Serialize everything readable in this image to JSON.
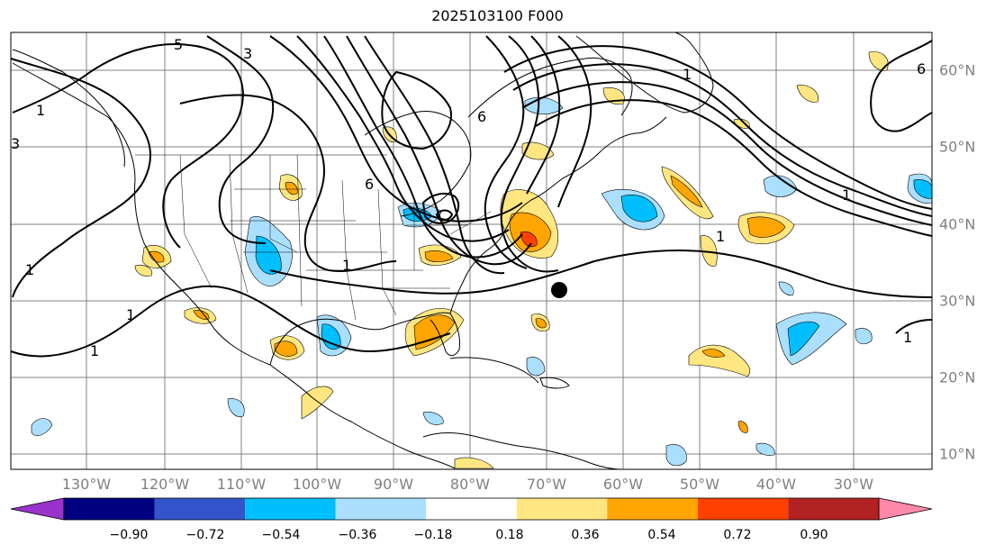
{
  "title": "2025103100 F000",
  "longitude_labels": [
    "130°W",
    "120°W",
    "110°W",
    "100°W",
    "90°W",
    "80°W",
    "70°W",
    "60°W",
    "50°W",
    "40°W",
    "30°W"
  ],
  "latitude_labels": [
    "60°N",
    "50°N",
    "40°N",
    "30°N",
    "20°N",
    "10°N"
  ],
  "colorbar": {
    "ticks": [
      "−0.90",
      "−0.72",
      "−0.54",
      "−0.36",
      "−0.18",
      "0.18",
      "0.36",
      "0.54",
      "0.72",
      "0.90"
    ],
    "colors": [
      "#9933cc",
      "#000080",
      "#3355cc",
      "#00bfff",
      "#aadfff",
      "#ffffff",
      "#ffe680",
      "#ffa500",
      "#ff4000",
      "#b22222",
      "#ff88aa"
    ]
  },
  "contour_labels": [
    "5",
    "3",
    "1",
    "1",
    "1",
    "1",
    "1",
    "6",
    "6",
    "1",
    "1",
    "3",
    "6",
    "1",
    "1"
  ],
  "marker": "storm-center"
}
